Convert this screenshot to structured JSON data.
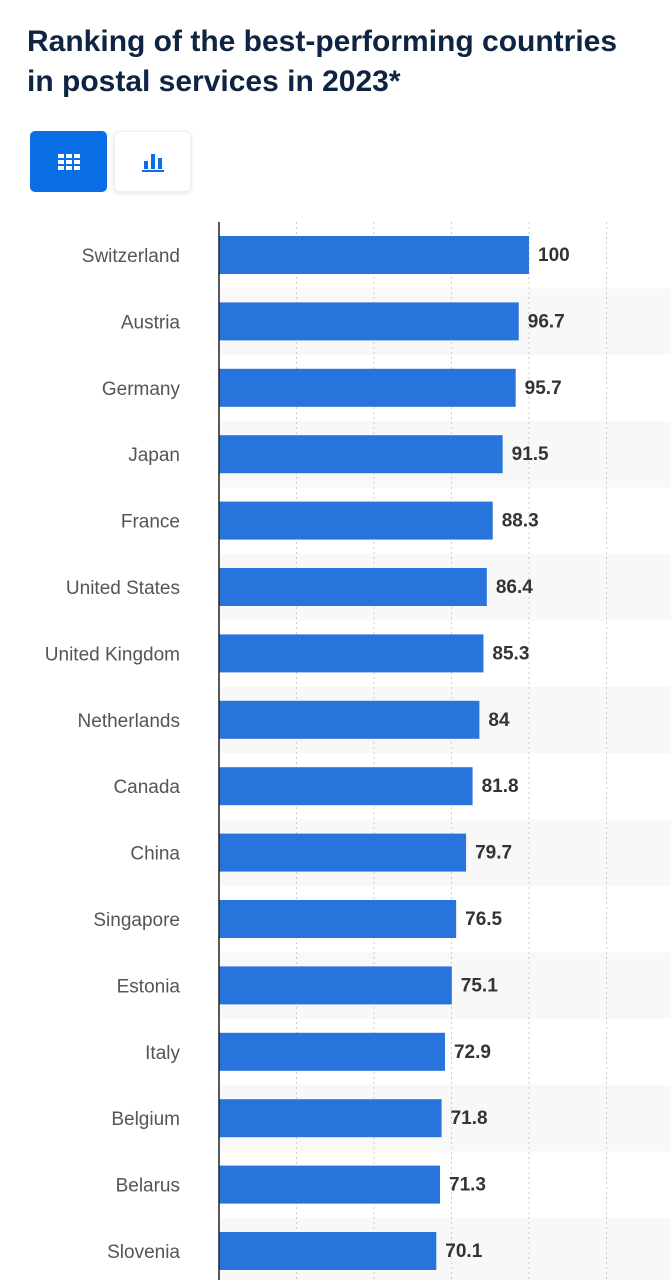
{
  "icons": {
    "table_view": "grid-icon",
    "chart_view": "bar-chart-icon"
  },
  "colors": {
    "bar": "#2874dd",
    "accent": "#0a6ee6",
    "title": "#0f2442"
  },
  "chart_data": {
    "type": "bar",
    "orientation": "horizontal",
    "title": "Ranking of the best-performing countries in postal services in 2023*",
    "categories": [
      "Switzerland",
      "Austria",
      "Germany",
      "Japan",
      "France",
      "United States",
      "United Kingdom",
      "Netherlands",
      "Canada",
      "China",
      "Singapore",
      "Estonia",
      "Italy",
      "Belgium",
      "Belarus",
      "Slovenia"
    ],
    "values": [
      100,
      96.7,
      95.7,
      91.5,
      88.3,
      86.4,
      85.3,
      84,
      81.8,
      79.7,
      76.5,
      75.1,
      72.9,
      71.8,
      71.3,
      70.1
    ],
    "value_labels": [
      "100",
      "96.7",
      "95.7",
      "91.5",
      "88.3",
      "86.4",
      "85.3",
      "84",
      "81.8",
      "79.7",
      "76.5",
      "75.1",
      "72.9",
      "71.8",
      "71.3",
      "70.1"
    ],
    "xlim": [
      0,
      125
    ],
    "grid": true,
    "xlabel": "",
    "ylabel": ""
  }
}
